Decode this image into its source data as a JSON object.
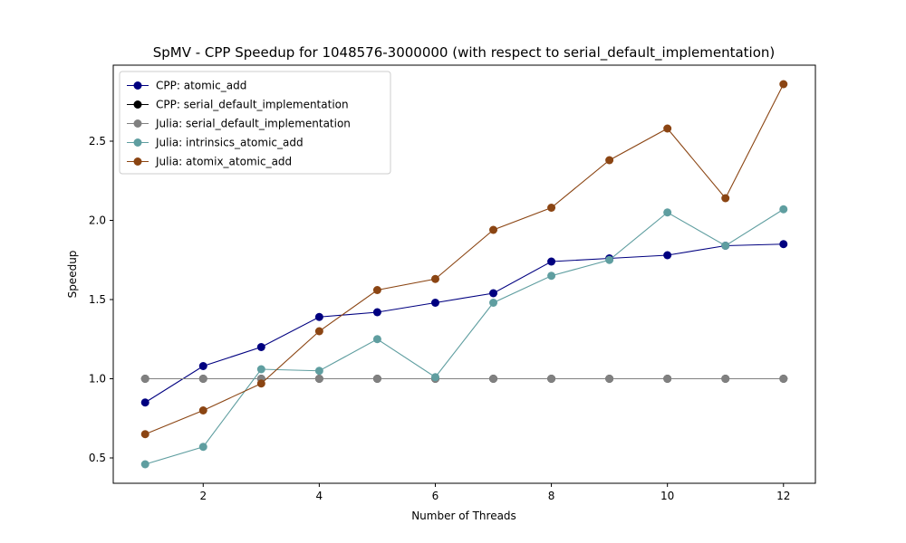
{
  "chart_data": {
    "type": "line",
    "title": "SpMV - CPP Speedup for 1048576-3000000 (with respect to serial_default_implementation)",
    "xlabel": "Number of Threads",
    "ylabel": "Speedup",
    "xlim": [
      0.45,
      12.55
    ],
    "ylim": [
      0.34,
      2.98
    ],
    "xticks": [
      2,
      4,
      6,
      8,
      10,
      12
    ],
    "yticks": [
      0.5,
      1.0,
      1.5,
      2.0,
      2.5
    ],
    "ytick_labels": [
      "0.5",
      "1.0",
      "1.5",
      "2.0",
      "2.5"
    ],
    "grid": false,
    "legend_position": "top-left",
    "x": [
      1,
      2,
      3,
      4,
      5,
      6,
      7,
      8,
      9,
      10,
      11,
      12
    ],
    "series": [
      {
        "name": "CPP: atomic_add",
        "color": "#000080",
        "values": [
          0.85,
          1.08,
          1.2,
          1.39,
          1.42,
          1.48,
          1.54,
          1.74,
          1.76,
          1.78,
          1.84,
          1.85
        ]
      },
      {
        "name": "CPP: serial_default_implementation",
        "color": "#000000",
        "values": [
          1.0,
          1.0,
          1.0,
          1.0,
          1.0,
          1.0,
          1.0,
          1.0,
          1.0,
          1.0,
          1.0,
          1.0
        ]
      },
      {
        "name": "Julia: serial_default_implementation",
        "color": "#808080",
        "values": [
          1.0,
          1.0,
          1.0,
          1.0,
          1.0,
          1.0,
          1.0,
          1.0,
          1.0,
          1.0,
          1.0,
          1.0
        ]
      },
      {
        "name": "Julia: intrinsics_atomic_add",
        "color": "#5f9ea0",
        "values": [
          0.46,
          0.57,
          1.06,
          1.05,
          1.25,
          1.01,
          1.48,
          1.65,
          1.75,
          2.05,
          1.84,
          2.07
        ]
      },
      {
        "name": "Julia: atomix_atomic_add",
        "color": "#8b4513",
        "values": [
          0.65,
          0.8,
          0.97,
          1.3,
          1.56,
          1.63,
          1.94,
          2.08,
          2.38,
          2.58,
          2.14,
          2.86
        ]
      }
    ]
  }
}
